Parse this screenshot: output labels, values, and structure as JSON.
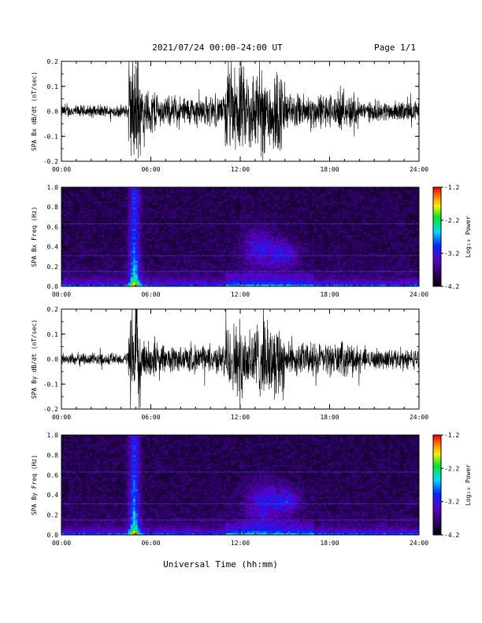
{
  "header": {
    "title": "2021/07/24  00:00-24:00 UT",
    "page": "Page 1/1"
  },
  "xlabel": "Universal Time (hh:mm)",
  "chart_data": [
    {
      "type": "line",
      "ylabel": "SPA Bx dB/dt (nT/sec)",
      "xlim": [
        0,
        24
      ],
      "ylim": [
        -0.2,
        0.2
      ],
      "xticks": [
        "00:00",
        "06:00",
        "12:00",
        "18:00",
        "24:00"
      ],
      "yticks": [
        "-0.2",
        "-0.1",
        "0.0",
        "0.1",
        "0.2"
      ],
      "activity": [
        {
          "from": 0,
          "to": 4.5,
          "amp": 0.025
        },
        {
          "from": 4.5,
          "to": 5.3,
          "amp": 0.22
        },
        {
          "from": 5.3,
          "to": 6.5,
          "amp": 0.09
        },
        {
          "from": 6.5,
          "to": 11,
          "amp": 0.06
        },
        {
          "from": 11,
          "to": 15,
          "amp": 0.17
        },
        {
          "from": 15,
          "to": 20,
          "amp": 0.07
        },
        {
          "from": 20,
          "to": 24,
          "amp": 0.04
        }
      ]
    },
    {
      "type": "heatmap",
      "ylabel": "SPA Bx Freq (Hz)",
      "xlim": [
        0,
        24
      ],
      "ylim": [
        0,
        1.0
      ],
      "xticks": [
        "00:00",
        "06:00",
        "12:00",
        "18:00",
        "24:00"
      ],
      "yticks": [
        "0.0",
        "0.2",
        "0.4",
        "0.6",
        "0.8",
        "1.0"
      ],
      "colorbar": {
        "label": "Log₁₀ Power",
        "range": [
          -4.2,
          -1.2
        ],
        "ticks": [
          "-1.2",
          "-2.2",
          "-3.2",
          "-4.2"
        ]
      },
      "features": [
        {
          "kind": "burst",
          "t": 4.9,
          "width": 0.35,
          "level": -2.6
        },
        {
          "kind": "patch",
          "t": 13.3,
          "width": 1.2,
          "f": 0.38,
          "fwidth": 0.2,
          "level": -3.1
        },
        {
          "kind": "patch",
          "t": 15.0,
          "width": 0.9,
          "f": 0.33,
          "fwidth": 0.12,
          "level": -3.2
        }
      ]
    },
    {
      "type": "line",
      "ylabel": "SPA By dB/dt (nT/sec)",
      "xlim": [
        0,
        24
      ],
      "ylim": [
        -0.2,
        0.2
      ],
      "xticks": [
        "00:00",
        "06:00",
        "12:00",
        "18:00",
        "24:00"
      ],
      "yticks": [
        "-0.2",
        "-0.1",
        "0.0",
        "0.1",
        "0.2"
      ],
      "activity": [
        {
          "from": 0,
          "to": 4.5,
          "amp": 0.025
        },
        {
          "from": 4.5,
          "to": 5.3,
          "amp": 0.22
        },
        {
          "from": 5.3,
          "to": 6.5,
          "amp": 0.08
        },
        {
          "from": 6.5,
          "to": 11,
          "amp": 0.055
        },
        {
          "from": 11,
          "to": 15,
          "amp": 0.15
        },
        {
          "from": 15,
          "to": 20,
          "amp": 0.065
        },
        {
          "from": 20,
          "to": 24,
          "amp": 0.04
        }
      ]
    },
    {
      "type": "heatmap",
      "ylabel": "SPA By Freq (Hz)",
      "xlim": [
        0,
        24
      ],
      "ylim": [
        0,
        1.0
      ],
      "xticks": [
        "00:00",
        "06:00",
        "12:00",
        "18:00",
        "24:00"
      ],
      "yticks": [
        "0.0",
        "0.2",
        "0.4",
        "0.6",
        "0.8",
        "1.0"
      ],
      "colorbar": {
        "label": "Log₁₀ Power",
        "range": [
          -4.2,
          -1.2
        ],
        "ticks": [
          "-1.2",
          "-2.2",
          "-3.2",
          "-4.2"
        ]
      },
      "features": [
        {
          "kind": "burst",
          "t": 4.9,
          "width": 0.35,
          "level": -2.6
        },
        {
          "kind": "patch",
          "t": 13.6,
          "width": 1.3,
          "f": 0.32,
          "fwidth": 0.22,
          "level": -3.2
        },
        {
          "kind": "patch",
          "t": 15.2,
          "width": 0.9,
          "f": 0.35,
          "fwidth": 0.12,
          "level": -3.3
        }
      ]
    }
  ]
}
